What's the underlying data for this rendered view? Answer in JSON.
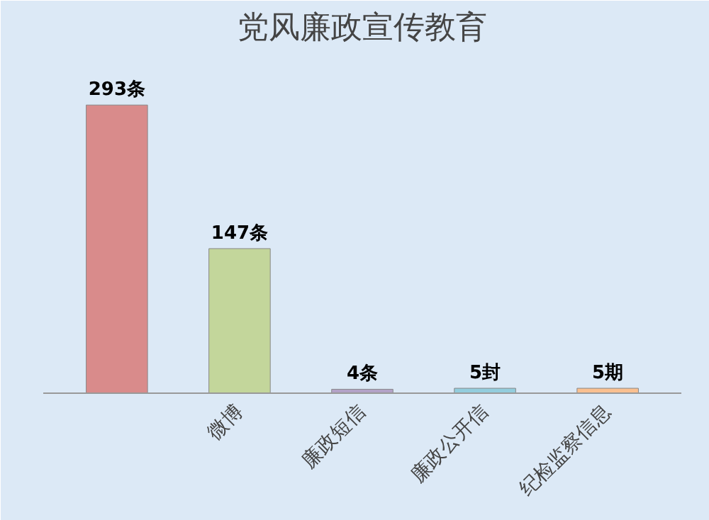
{
  "chart_data": {
    "type": "bar",
    "title": "党风廉政宣传教育",
    "categories": [
      null,
      "微博",
      "廉政短信",
      "廉政公开信",
      "纪检监察信息"
    ],
    "values": [
      293,
      147,
      4,
      5,
      5
    ],
    "colors": [
      "#d98b8b",
      "#c3d69b",
      "#b3a2c7",
      "#93cddd",
      "#fac090"
    ],
    "value_labels": [
      "293条",
      "147条",
      "4条",
      "5封",
      "5期"
    ]
  }
}
